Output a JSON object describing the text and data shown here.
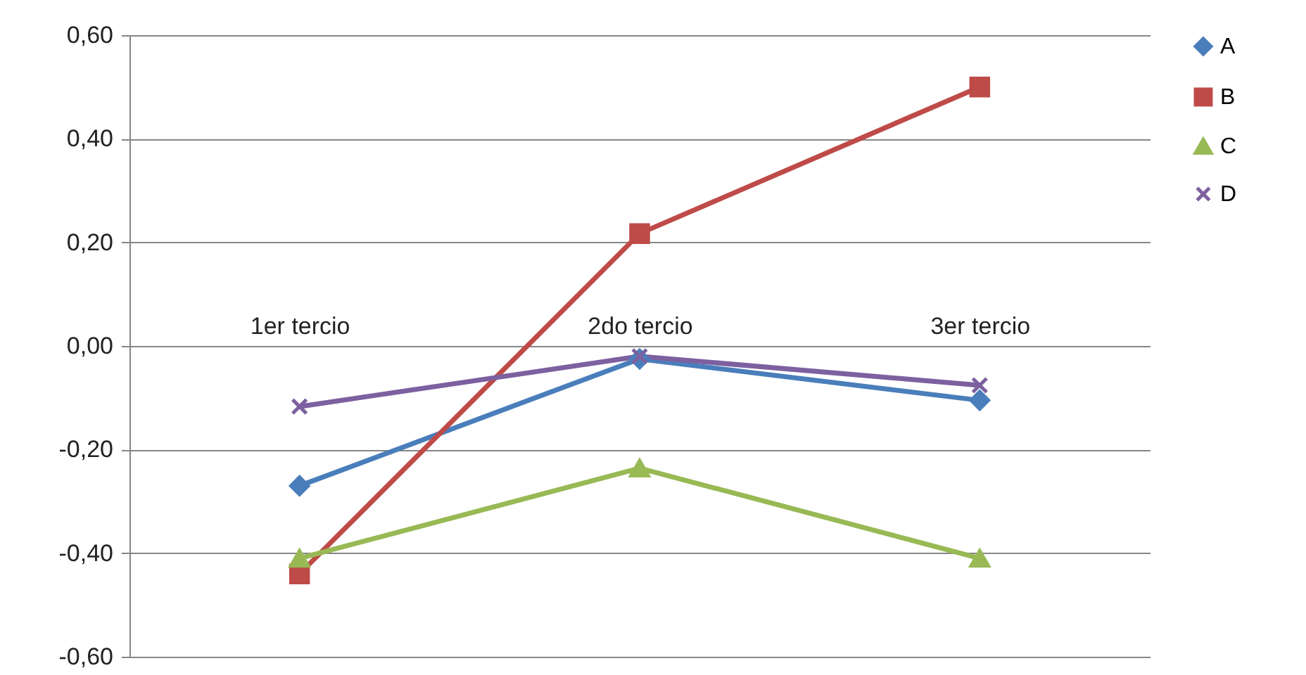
{
  "chart_data": {
    "type": "line",
    "categories": [
      "1er tercio",
      "2do tercio",
      "3er tercio"
    ],
    "series": [
      {
        "name": "A",
        "color": "#4a7ebb",
        "marker": "diamond",
        "values": [
          -0.27,
          -0.025,
          -0.105
        ]
      },
      {
        "name": "B",
        "color": "#be4b48",
        "marker": "square",
        "values": [
          -0.44,
          0.217,
          0.5
        ]
      },
      {
        "name": "C",
        "color": "#98b954",
        "marker": "triangle",
        "values": [
          -0.41,
          -0.236,
          -0.41
        ]
      },
      {
        "name": "D",
        "color": "#7d60a0",
        "marker": "cross",
        "values": [
          -0.117,
          -0.02,
          -0.076
        ]
      }
    ],
    "ylim": [
      -0.6,
      0.6
    ],
    "yticks": [
      {
        "value": -0.6,
        "label": "-0,60"
      },
      {
        "value": -0.4,
        "label": "-0,40"
      },
      {
        "value": -0.2,
        "label": "-0,20"
      },
      {
        "value": 0,
        "label": "0,00"
      },
      {
        "value": 0.2,
        "label": "0,20"
      },
      {
        "value": 0.4,
        "label": "0,40"
      },
      {
        "value": 0.6,
        "label": "0,60"
      }
    ],
    "grid": "y",
    "legend": "right",
    "line_style": "solid"
  }
}
